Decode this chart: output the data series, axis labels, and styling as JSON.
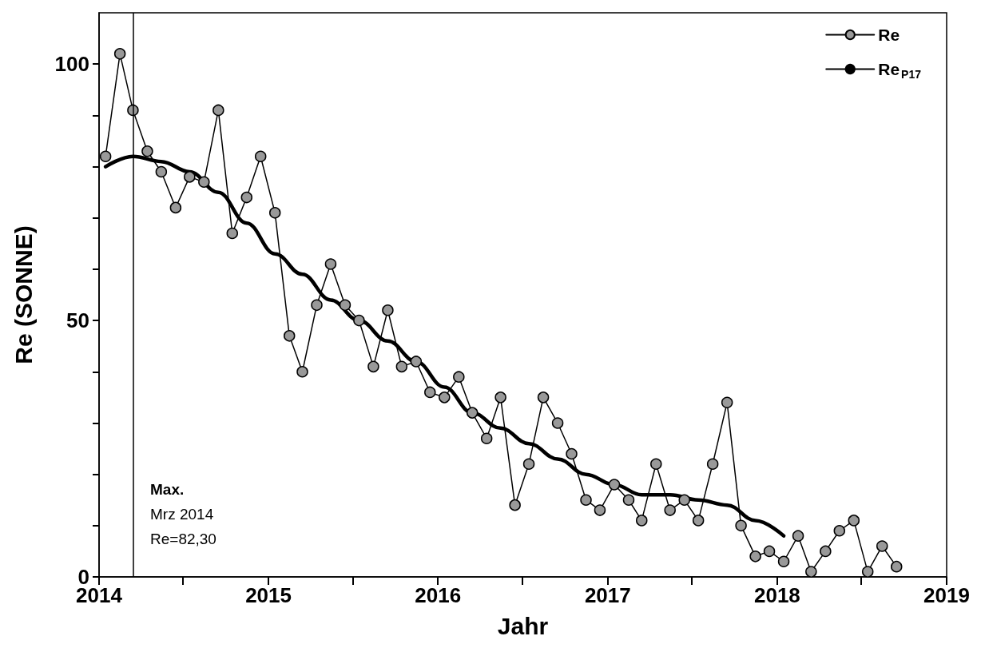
{
  "chart_data": {
    "type": "line",
    "xlabel": "Jahr",
    "ylabel": "Re (SONNE)",
    "series": [
      {
        "name": "Re",
        "color": "#999999",
        "marker": "circle",
        "x": [
          "2014-01-15",
          "2014-02-15",
          "2014-03-15",
          "2014-04-15",
          "2014-05-15",
          "2014-06-15",
          "2014-07-15",
          "2014-08-15",
          "2014-09-15",
          "2014-10-15",
          "2014-11-15",
          "2014-12-15",
          "2015-01-15",
          "2015-02-15",
          "2015-03-15",
          "2015-04-15",
          "2015-05-15",
          "2015-06-15",
          "2015-07-15",
          "2015-08-15",
          "2015-09-15",
          "2015-10-15",
          "2015-11-15",
          "2015-12-15",
          "2016-01-15",
          "2016-02-15",
          "2016-03-15",
          "2016-04-15",
          "2016-05-15",
          "2016-06-15",
          "2016-07-15",
          "2016-08-15",
          "2016-09-15",
          "2016-10-15",
          "2016-11-15",
          "2016-12-15",
          "2017-01-15",
          "2017-02-15",
          "2017-03-15",
          "2017-04-15",
          "2017-05-15",
          "2017-06-15",
          "2017-07-15",
          "2017-08-15",
          "2017-09-15",
          "2017-10-15",
          "2017-11-15",
          "2017-12-15",
          "2018-01-15",
          "2018-02-15",
          "2018-03-15",
          "2018-04-15",
          "2018-05-15",
          "2018-06-15",
          "2018-07-15",
          "2018-08-15",
          "2018-09-15"
        ],
        "values": [
          82,
          102,
          91,
          83,
          79,
          72,
          78,
          77,
          91,
          67,
          74,
          82,
          71,
          47,
          40,
          53,
          61,
          53,
          50,
          41,
          52,
          41,
          42,
          36,
          35,
          39,
          32,
          27,
          35,
          14,
          22,
          35,
          30,
          24,
          15,
          13,
          18,
          15,
          11,
          22,
          13,
          15,
          11,
          22,
          34,
          10,
          4,
          5,
          3,
          8,
          1,
          5,
          9,
          11,
          1,
          6,
          2
        ]
      },
      {
        "name": "Re$_{P17}$",
        "color": "#000000",
        "marker": "none",
        "x": [
          "2014-01-15",
          "2014-03-15",
          "2014-05-15",
          "2014-07-15",
          "2014-09-15",
          "2014-11-15",
          "2015-01-15",
          "2015-03-15",
          "2015-05-15",
          "2015-07-15",
          "2015-09-15",
          "2015-11-15",
          "2016-01-15",
          "2016-03-15",
          "2016-05-15",
          "2016-07-15",
          "2016-09-15",
          "2016-11-15",
          "2017-01-15",
          "2017-03-15",
          "2017-05-15",
          "2017-07-15",
          "2017-09-15",
          "2017-11-15",
          "2018-01-15"
        ],
        "values": [
          80,
          82,
          81,
          79,
          75,
          69,
          63,
          59,
          54,
          50,
          46,
          42,
          37,
          32,
          29,
          26,
          23,
          20,
          18,
          16,
          16,
          15,
          14,
          11,
          8
        ]
      }
    ],
    "xlim": [
      "2014-01-01",
      "2019-01-01"
    ],
    "xticks": [
      {
        "value": "2014-01-01",
        "label": "2014"
      },
      {
        "value": "2014-07-01",
        "label": null
      },
      {
        "value": "2015-01-01",
        "label": "2015"
      },
      {
        "value": "2015-07-01",
        "label": null
      },
      {
        "value": "2016-01-01",
        "label": "2016"
      },
      {
        "value": "2016-07-01",
        "label": null
      },
      {
        "value": "2017-01-01",
        "label": "2017"
      },
      {
        "value": "2017-07-01",
        "label": null
      },
      {
        "value": "2018-01-01",
        "label": "2018"
      },
      {
        "value": "2018-07-01",
        "label": null
      },
      {
        "value": "2019-01-01",
        "label": "2019"
      }
    ],
    "ylim": [
      0,
      110
    ],
    "yticks": [
      0,
      {
        "value": 10,
        "label": null
      },
      {
        "value": 20,
        "label": null
      },
      {
        "value": 30,
        "label": null
      },
      {
        "value": 40,
        "label": null
      },
      50,
      {
        "value": 60,
        "label": null
      },
      {
        "value": 70,
        "label": null
      },
      {
        "value": 80,
        "label": null
      },
      {
        "value": 90,
        "label": null
      },
      100
    ],
    "ref_lines": [
      {
        "axis": "x",
        "value": "2014-03-15",
        "color": "#000000"
      }
    ],
    "annotations": [
      "Max.",
      "Mrz 2014",
      "Re=82,30"
    ],
    "grid": false,
    "legend": "top right"
  }
}
